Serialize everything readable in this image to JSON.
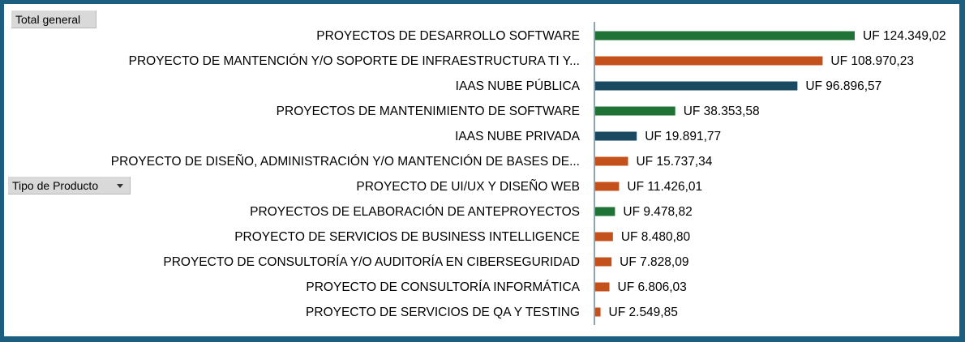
{
  "header": {
    "total_label": "Total general"
  },
  "filter": {
    "label": "Tipo de Producto",
    "icon": "chevron-down-icon"
  },
  "colors": {
    "green": "#207336",
    "orange": "#c4501c",
    "navy": "#1a4a62"
  },
  "chart_data": {
    "type": "bar",
    "orientation": "horizontal",
    "categories": [
      "PROYECTOS DE DESARROLLO SOFTWARE",
      "PROYECTO DE MANTENCIÓN Y/O SOPORTE DE INFRAESTRUCTURA TI Y...",
      "IAAS NUBE PÚBLICA",
      "PROYECTOS DE MANTENIMIENTO DE SOFTWARE",
      "IAAS NUBE PRIVADA",
      "PROYECTO DE DISEÑO, ADMINISTRACIÓN Y/O MANTENCIÓN DE BASES DE...",
      "PROYECTO DE UI/UX Y DISEÑO WEB",
      "PROYECTOS DE ELABORACIÓN DE ANTEPROYECTOS",
      "PROYECTO DE SERVICIOS DE BUSINESS INTELLIGENCE",
      "PROYECTO DE CONSULTORÍA Y/O AUDITORÍA EN CIBERSEGURIDAD",
      "PROYECTO DE CONSULTORÍA INFORMÁTICA",
      "PROYECTO DE SERVICIOS DE QA Y TESTING"
    ],
    "values": [
      124349.02,
      108970.23,
      96896.57,
      38353.58,
      19891.77,
      15737.34,
      11426.01,
      9478.82,
      8480.8,
      7828.09,
      6806.03,
      2549.85
    ],
    "value_labels": [
      "UF 124.349,02",
      "UF 108.970,23",
      "UF 96.896,57",
      "UF 38.353,58",
      "UF 19.891,77",
      "UF 15.737,34",
      "UF 11.426,01",
      "UF 9.478,82",
      "UF 8.480,80",
      "UF 7.828,09",
      "UF 6.806,03",
      "UF 2.549,85"
    ],
    "bar_colors": [
      "#207336",
      "#c4501c",
      "#1a4a62",
      "#207336",
      "#1a4a62",
      "#c4501c",
      "#c4501c",
      "#207336",
      "#c4501c",
      "#c4501c",
      "#c4501c",
      "#c4501c"
    ],
    "xlim": [
      0,
      124349.02
    ],
    "grid": false,
    "legend": "none"
  }
}
